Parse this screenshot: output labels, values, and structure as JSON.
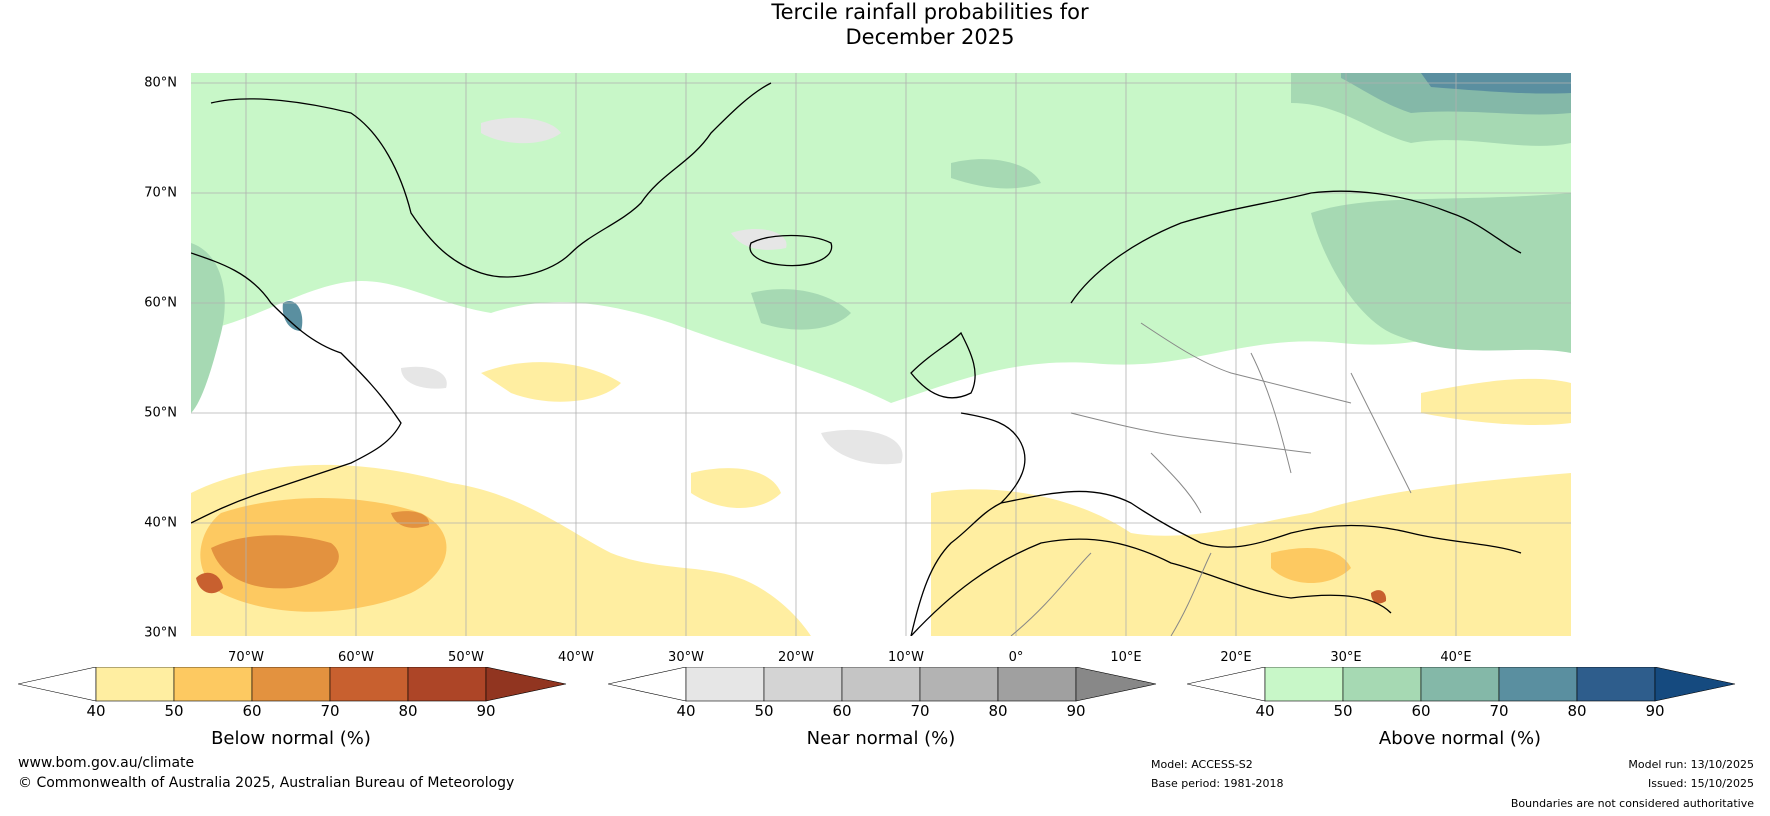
{
  "title": {
    "line1": "Tercile rainfall probabilities for",
    "line2": "December 2025"
  },
  "map": {
    "lat_labels": [
      "80°N",
      "70°N",
      "60°N",
      "50°N",
      "40°N",
      "30°N"
    ],
    "lon_labels": [
      "70°W",
      "60°W",
      "50°W",
      "40°W",
      "30°W",
      "20°W",
      "10°W",
      "0°",
      "10°E",
      "20°E",
      "30°E",
      "40°E"
    ]
  },
  "colorbars": [
    {
      "title": "Below normal (%)",
      "ticks": [
        "40",
        "50",
        "60",
        "70",
        "80",
        "90"
      ],
      "colors": [
        "#ffffff",
        "#ffeea1",
        "#fdc961",
        "#e3923f",
        "#c8602f",
        "#ad4527",
        "#913520"
      ]
    },
    {
      "title": "Near normal (%)",
      "ticks": [
        "40",
        "50",
        "60",
        "70",
        "80",
        "90"
      ],
      "colors": [
        "#ffffff",
        "#e6e6e6",
        "#d4d4d4",
        "#c5c5c5",
        "#b3b3b3",
        "#a0a0a0",
        "#888888"
      ]
    },
    {
      "title": "Above normal (%)",
      "ticks": [
        "40",
        "50",
        "60",
        "70",
        "80",
        "90"
      ],
      "colors": [
        "#ffffff",
        "#c8f7c8",
        "#a6d9b3",
        "#84b8a8",
        "#5a8fa0",
        "#2e5d8c",
        "#154a7f"
      ]
    }
  ],
  "footer": {
    "website": "www.bom.gov.au/climate",
    "copyright": "© Commonwealth of Australia 2025, Australian Bureau of Meteorology",
    "model": "Model: ACCESS-S2",
    "base_period": "Base period: 1981-2018",
    "model_run": "Model run: 13/10/2025",
    "issued": "Issued: 15/10/2025",
    "disclaimer": "Boundaries are not considered authoritative"
  }
}
